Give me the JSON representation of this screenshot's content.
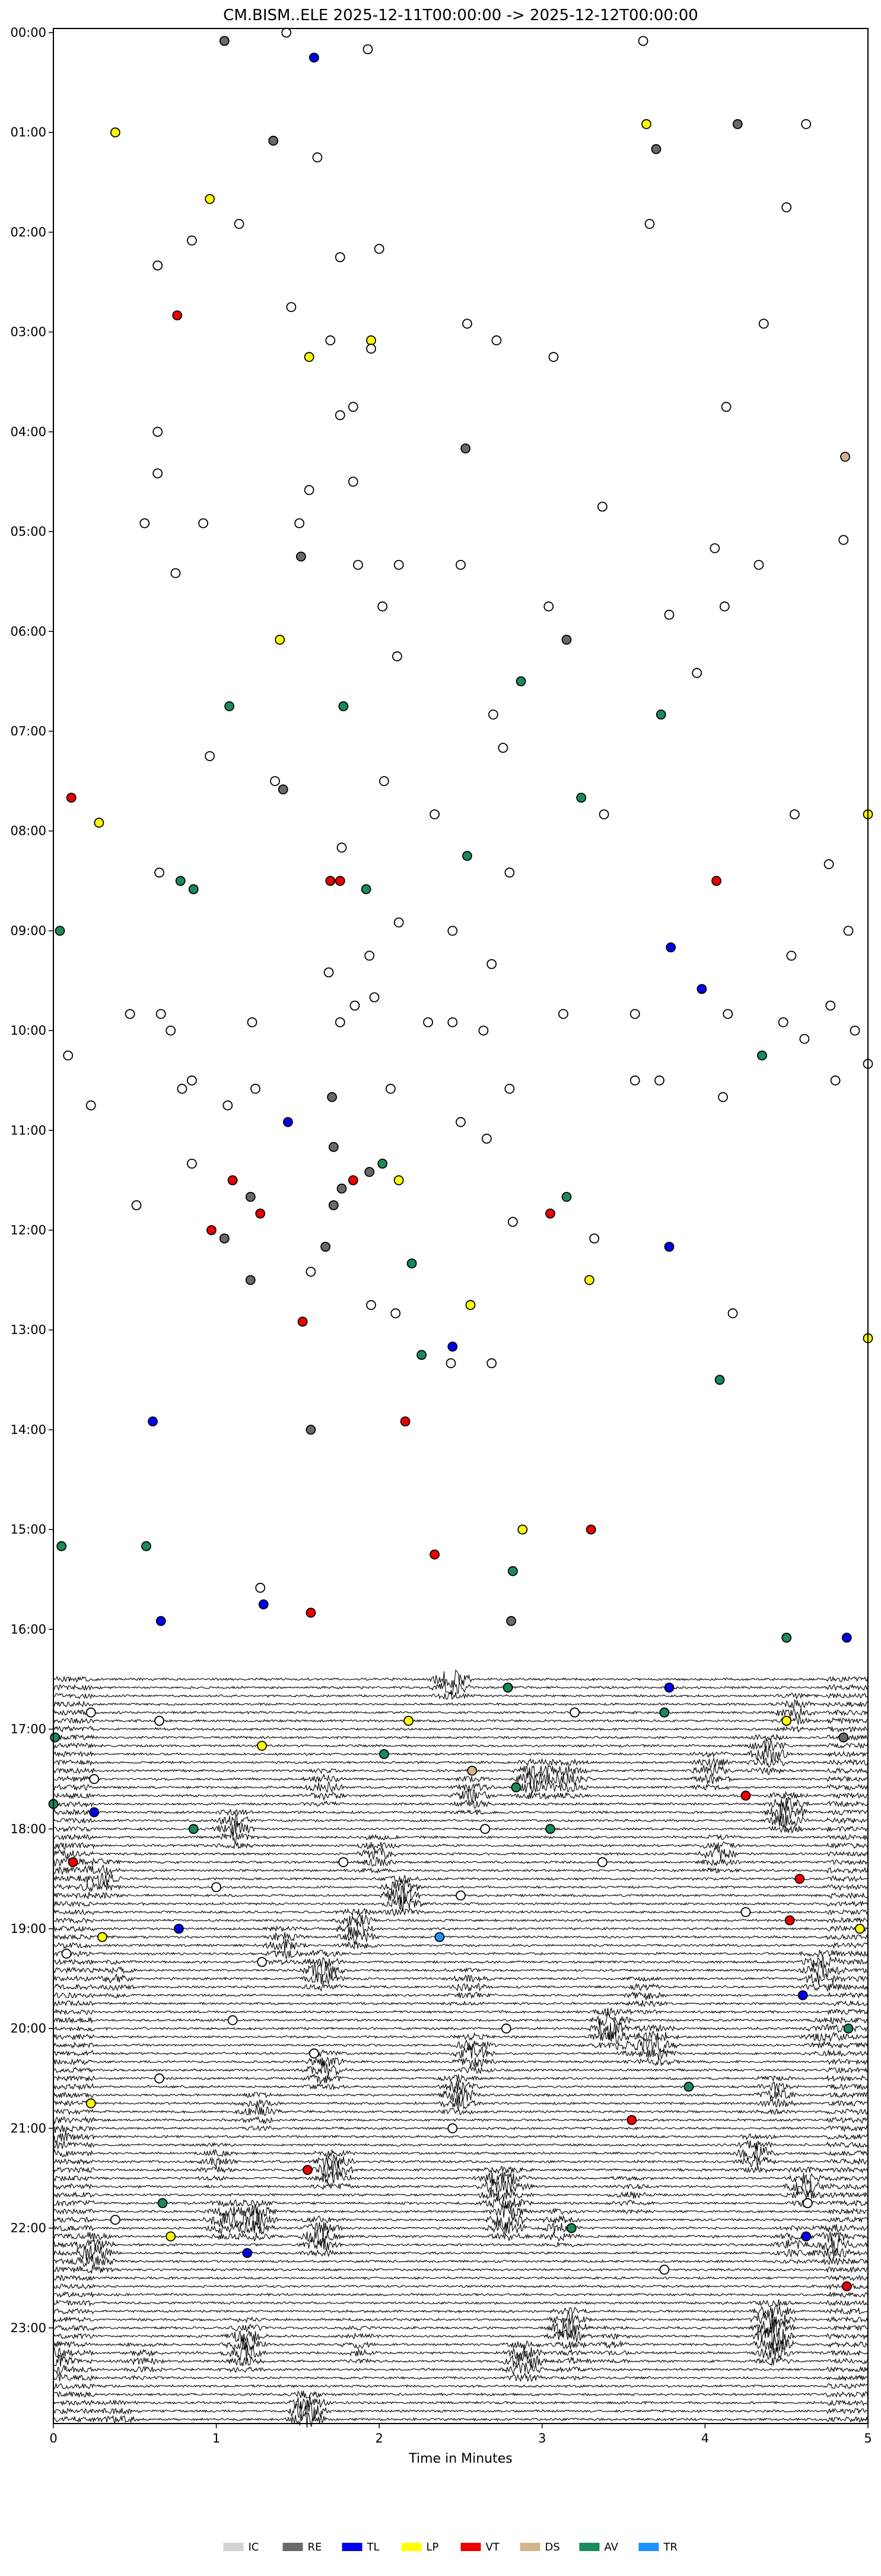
{
  "chart_data": {
    "type": "scatter",
    "title": "CM.BISM..ELE  2025-12-11T00:00:00 -> 2025-12-12T00:00:00",
    "xlabel": "Time in Minutes",
    "ylabel": "",
    "xlim": [
      0,
      5
    ],
    "x_ticks": [
      "0",
      "1",
      "2",
      "3",
      "4",
      "5"
    ],
    "y_ticks": [
      "00:00",
      "01:00",
      "02:00",
      "03:00",
      "04:00",
      "05:00",
      "06:00",
      "07:00",
      "08:00",
      "09:00",
      "10:00",
      "11:00",
      "12:00",
      "13:00",
      "14:00",
      "15:00",
      "16:00",
      "17:00",
      "18:00",
      "19:00",
      "20:00",
      "21:00",
      "22:00",
      "23:00"
    ],
    "rows_per_hour": 12,
    "grid": false,
    "legend_position": "bottom",
    "legend": [
      {
        "label": "IC",
        "color": "#d3d3d3"
      },
      {
        "label": "RE",
        "color": "#696969"
      },
      {
        "label": "TL",
        "color": "#0000ee"
      },
      {
        "label": "LP",
        "color": "#ffff00"
      },
      {
        "label": "VT",
        "color": "#ee0000"
      },
      {
        "label": "DS",
        "color": "#d2b48c"
      },
      {
        "label": "AV",
        "color": "#1a8a5a"
      },
      {
        "label": "TR",
        "color": "#1e90ff"
      }
    ],
    "trace_start_row": 198,
    "events": [
      {
        "x": 1.43,
        "row": 0,
        "c": "IC"
      },
      {
        "x": 1.05,
        "row": 1,
        "c": "RE"
      },
      {
        "x": 3.62,
        "row": 1,
        "c": "IC"
      },
      {
        "x": 1.6,
        "row": 3,
        "c": "TL"
      },
      {
        "x": 1.93,
        "row": 2,
        "c": "IC"
      },
      {
        "x": 0.38,
        "row": 12,
        "c": "LP"
      },
      {
        "x": 3.64,
        "row": 11,
        "c": "LP"
      },
      {
        "x": 4.2,
        "row": 11,
        "c": "RE"
      },
      {
        "x": 4.62,
        "row": 11,
        "c": "IC"
      },
      {
        "x": 1.35,
        "row": 13,
        "c": "RE"
      },
      {
        "x": 3.7,
        "row": 14,
        "c": "RE"
      },
      {
        "x": 1.62,
        "row": 15,
        "c": "IC"
      },
      {
        "x": 0.96,
        "row": 20,
        "c": "LP"
      },
      {
        "x": 4.5,
        "row": 21,
        "c": "IC"
      },
      {
        "x": 1.14,
        "row": 23,
        "c": "IC"
      },
      {
        "x": 3.66,
        "row": 23,
        "c": "IC"
      },
      {
        "x": 0.85,
        "row": 25,
        "c": "IC"
      },
      {
        "x": 2.0,
        "row": 26,
        "c": "IC"
      },
      {
        "x": 1.76,
        "row": 27,
        "c": "IC"
      },
      {
        "x": 0.64,
        "row": 28,
        "c": "IC"
      },
      {
        "x": 0.76,
        "row": 34,
        "c": "VT"
      },
      {
        "x": 1.46,
        "row": 33,
        "c": "IC"
      },
      {
        "x": 4.36,
        "row": 35,
        "c": "IC"
      },
      {
        "x": 2.54,
        "row": 35,
        "c": "IC"
      },
      {
        "x": 1.7,
        "row": 37,
        "c": "IC"
      },
      {
        "x": 1.95,
        "row": 37,
        "c": "LP"
      },
      {
        "x": 1.95,
        "row": 38,
        "c": "IC"
      },
      {
        "x": 2.72,
        "row": 37,
        "c": "IC"
      },
      {
        "x": 1.57,
        "row": 39,
        "c": "LP"
      },
      {
        "x": 3.07,
        "row": 39,
        "c": "IC"
      },
      {
        "x": 1.84,
        "row": 45,
        "c": "IC"
      },
      {
        "x": 4.13,
        "row": 45,
        "c": "IC"
      },
      {
        "x": 1.76,
        "row": 46,
        "c": "IC"
      },
      {
        "x": 0.64,
        "row": 48,
        "c": "IC"
      },
      {
        "x": 2.53,
        "row": 50,
        "c": "RE"
      },
      {
        "x": 4.86,
        "row": 51,
        "c": "DS"
      },
      {
        "x": 0.64,
        "row": 53,
        "c": "IC"
      },
      {
        "x": 1.84,
        "row": 54,
        "c": "IC"
      },
      {
        "x": 1.57,
        "row": 55,
        "c": "IC"
      },
      {
        "x": 3.37,
        "row": 57,
        "c": "IC"
      },
      {
        "x": 0.56,
        "row": 59,
        "c": "IC"
      },
      {
        "x": 0.92,
        "row": 59,
        "c": "IC"
      },
      {
        "x": 1.51,
        "row": 59,
        "c": "IC"
      },
      {
        "x": 4.85,
        "row": 61,
        "c": "IC"
      },
      {
        "x": 4.06,
        "row": 62,
        "c": "IC"
      },
      {
        "x": 1.52,
        "row": 63,
        "c": "RE"
      },
      {
        "x": 1.87,
        "row": 64,
        "c": "IC"
      },
      {
        "x": 2.12,
        "row": 64,
        "c": "IC"
      },
      {
        "x": 2.5,
        "row": 64,
        "c": "IC"
      },
      {
        "x": 4.33,
        "row": 64,
        "c": "IC"
      },
      {
        "x": 0.75,
        "row": 65,
        "c": "IC"
      },
      {
        "x": 2.02,
        "row": 69,
        "c": "IC"
      },
      {
        "x": 3.04,
        "row": 69,
        "c": "IC"
      },
      {
        "x": 4.12,
        "row": 69,
        "c": "IC"
      },
      {
        "x": 3.78,
        "row": 70,
        "c": "IC"
      },
      {
        "x": 1.39,
        "row": 73,
        "c": "LP"
      },
      {
        "x": 3.15,
        "row": 73,
        "c": "RE"
      },
      {
        "x": 2.11,
        "row": 75,
        "c": "IC"
      },
      {
        "x": 3.95,
        "row": 77,
        "c": "IC"
      },
      {
        "x": 2.87,
        "row": 78,
        "c": "AV"
      },
      {
        "x": 1.08,
        "row": 81,
        "c": "AV"
      },
      {
        "x": 1.78,
        "row": 81,
        "c": "AV"
      },
      {
        "x": 2.7,
        "row": 82,
        "c": "IC"
      },
      {
        "x": 3.73,
        "row": 82,
        "c": "AV"
      },
      {
        "x": 0.96,
        "row": 87,
        "c": "IC"
      },
      {
        "x": 2.76,
        "row": 86,
        "c": "IC"
      },
      {
        "x": 1.36,
        "row": 90,
        "c": "IC"
      },
      {
        "x": 1.41,
        "row": 91,
        "c": "RE"
      },
      {
        "x": 2.03,
        "row": 90,
        "c": "IC"
      },
      {
        "x": 0.11,
        "row": 92,
        "c": "VT"
      },
      {
        "x": 3.24,
        "row": 92,
        "c": "AV"
      },
      {
        "x": 2.34,
        "row": 94,
        "c": "IC"
      },
      {
        "x": 3.38,
        "row": 94,
        "c": "IC"
      },
      {
        "x": 4.55,
        "row": 94,
        "c": "IC"
      },
      {
        "x": 5.0,
        "row": 94,
        "c": "LP"
      },
      {
        "x": 0.28,
        "row": 95,
        "c": "LP"
      },
      {
        "x": 1.77,
        "row": 98,
        "c": "IC"
      },
      {
        "x": 2.54,
        "row": 99,
        "c": "AV"
      },
      {
        "x": 4.76,
        "row": 100,
        "c": "IC"
      },
      {
        "x": 0.65,
        "row": 101,
        "c": "IC"
      },
      {
        "x": 2.8,
        "row": 101,
        "c": "IC"
      },
      {
        "x": 0.78,
        "row": 102,
        "c": "AV"
      },
      {
        "x": 1.7,
        "row": 102,
        "c": "VT"
      },
      {
        "x": 1.76,
        "row": 102,
        "c": "VT"
      },
      {
        "x": 4.07,
        "row": 102,
        "c": "VT"
      },
      {
        "x": 0.86,
        "row": 103,
        "c": "AV"
      },
      {
        "x": 1.92,
        "row": 103,
        "c": "AV"
      },
      {
        "x": 0.04,
        "row": 108,
        "c": "AV"
      },
      {
        "x": 2.12,
        "row": 107,
        "c": "IC"
      },
      {
        "x": 2.45,
        "row": 108,
        "c": "IC"
      },
      {
        "x": 4.88,
        "row": 108,
        "c": "IC"
      },
      {
        "x": 3.79,
        "row": 110,
        "c": "TL"
      },
      {
        "x": 4.53,
        "row": 111,
        "c": "IC"
      },
      {
        "x": 1.94,
        "row": 111,
        "c": "IC"
      },
      {
        "x": 2.69,
        "row": 112,
        "c": "IC"
      },
      {
        "x": 1.69,
        "row": 113,
        "c": "IC"
      },
      {
        "x": 3.98,
        "row": 115,
        "c": "TL"
      },
      {
        "x": 1.97,
        "row": 116,
        "c": "IC"
      },
      {
        "x": 1.85,
        "row": 117,
        "c": "IC"
      },
      {
        "x": 4.77,
        "row": 117,
        "c": "IC"
      },
      {
        "x": 0.47,
        "row": 118,
        "c": "IC"
      },
      {
        "x": 0.66,
        "row": 118,
        "c": "IC"
      },
      {
        "x": 3.13,
        "row": 118,
        "c": "IC"
      },
      {
        "x": 3.57,
        "row": 118,
        "c": "IC"
      },
      {
        "x": 4.14,
        "row": 118,
        "c": "IC"
      },
      {
        "x": 1.22,
        "row": 119,
        "c": "IC"
      },
      {
        "x": 1.76,
        "row": 119,
        "c": "IC"
      },
      {
        "x": 2.3,
        "row": 119,
        "c": "IC"
      },
      {
        "x": 2.45,
        "row": 119,
        "c": "IC"
      },
      {
        "x": 4.48,
        "row": 119,
        "c": "IC"
      },
      {
        "x": 0.72,
        "row": 120,
        "c": "IC"
      },
      {
        "x": 2.64,
        "row": 120,
        "c": "IC"
      },
      {
        "x": 4.92,
        "row": 120,
        "c": "IC"
      },
      {
        "x": 4.61,
        "row": 121,
        "c": "IC"
      },
      {
        "x": 0.09,
        "row": 123,
        "c": "IC"
      },
      {
        "x": 4.35,
        "row": 123,
        "c": "AV"
      },
      {
        "x": 5.0,
        "row": 124,
        "c": "IC"
      },
      {
        "x": 0.85,
        "row": 126,
        "c": "IC"
      },
      {
        "x": 3.57,
        "row": 126,
        "c": "IC"
      },
      {
        "x": 3.72,
        "row": 126,
        "c": "IC"
      },
      {
        "x": 4.8,
        "row": 126,
        "c": "IC"
      },
      {
        "x": 0.79,
        "row": 127,
        "c": "IC"
      },
      {
        "x": 1.24,
        "row": 127,
        "c": "IC"
      },
      {
        "x": 2.07,
        "row": 127,
        "c": "IC"
      },
      {
        "x": 2.8,
        "row": 127,
        "c": "IC"
      },
      {
        "x": 1.71,
        "row": 128,
        "c": "RE"
      },
      {
        "x": 4.11,
        "row": 128,
        "c": "IC"
      },
      {
        "x": 0.23,
        "row": 129,
        "c": "IC"
      },
      {
        "x": 1.07,
        "row": 129,
        "c": "IC"
      },
      {
        "x": 1.44,
        "row": 131,
        "c": "TL"
      },
      {
        "x": 2.5,
        "row": 131,
        "c": "IC"
      },
      {
        "x": 2.66,
        "row": 133,
        "c": "IC"
      },
      {
        "x": 1.72,
        "row": 134,
        "c": "RE"
      },
      {
        "x": 0.85,
        "row": 136,
        "c": "IC"
      },
      {
        "x": 1.94,
        "row": 137,
        "c": "RE"
      },
      {
        "x": 2.02,
        "row": 136,
        "c": "AV"
      },
      {
        "x": 1.1,
        "row": 138,
        "c": "VT"
      },
      {
        "x": 1.84,
        "row": 138,
        "c": "VT"
      },
      {
        "x": 2.12,
        "row": 138,
        "c": "LP"
      },
      {
        "x": 1.77,
        "row": 139,
        "c": "RE"
      },
      {
        "x": 1.21,
        "row": 140,
        "c": "RE"
      },
      {
        "x": 3.15,
        "row": 140,
        "c": "AV"
      },
      {
        "x": 0.51,
        "row": 141,
        "c": "IC"
      },
      {
        "x": 1.72,
        "row": 141,
        "c": "RE"
      },
      {
        "x": 1.27,
        "row": 142,
        "c": "VT"
      },
      {
        "x": 3.05,
        "row": 142,
        "c": "VT"
      },
      {
        "x": 2.82,
        "row": 143,
        "c": "IC"
      },
      {
        "x": 0.97,
        "row": 144,
        "c": "VT"
      },
      {
        "x": 1.05,
        "row": 145,
        "c": "RE"
      },
      {
        "x": 3.32,
        "row": 145,
        "c": "IC"
      },
      {
        "x": 3.78,
        "row": 146,
        "c": "TL"
      },
      {
        "x": 1.67,
        "row": 146,
        "c": "RE"
      },
      {
        "x": 2.2,
        "row": 148,
        "c": "AV"
      },
      {
        "x": 1.21,
        "row": 150,
        "c": "RE"
      },
      {
        "x": 3.29,
        "row": 150,
        "c": "LP"
      },
      {
        "x": 1.58,
        "row": 149,
        "c": "IC"
      },
      {
        "x": 1.95,
        "row": 153,
        "c": "IC"
      },
      {
        "x": 2.1,
        "row": 154,
        "c": "IC"
      },
      {
        "x": 2.56,
        "row": 153,
        "c": "LP"
      },
      {
        "x": 4.17,
        "row": 154,
        "c": "IC"
      },
      {
        "x": 1.53,
        "row": 155,
        "c": "VT"
      },
      {
        "x": 5.0,
        "row": 157,
        "c": "LP"
      },
      {
        "x": 2.45,
        "row": 158,
        "c": "TL"
      },
      {
        "x": 2.26,
        "row": 159,
        "c": "AV"
      },
      {
        "x": 2.44,
        "row": 160,
        "c": "IC"
      },
      {
        "x": 2.69,
        "row": 160,
        "c": "IC"
      },
      {
        "x": 4.09,
        "row": 162,
        "c": "AV"
      },
      {
        "x": 0.61,
        "row": 167,
        "c": "TL"
      },
      {
        "x": 2.16,
        "row": 167,
        "c": "VT"
      },
      {
        "x": 1.58,
        "row": 168,
        "c": "RE"
      },
      {
        "x": 2.88,
        "row": 180,
        "c": "LP"
      },
      {
        "x": 3.3,
        "row": 180,
        "c": "VT"
      },
      {
        "x": 0.05,
        "row": 182,
        "c": "AV"
      },
      {
        "x": 0.57,
        "row": 182,
        "c": "AV"
      },
      {
        "x": 2.34,
        "row": 183,
        "c": "VT"
      },
      {
        "x": 2.82,
        "row": 185,
        "c": "AV"
      },
      {
        "x": 1.27,
        "row": 187,
        "c": "IC"
      },
      {
        "x": 1.29,
        "row": 189,
        "c": "TL"
      },
      {
        "x": 1.58,
        "row": 190,
        "c": "VT"
      },
      {
        "x": 2.81,
        "row": 191,
        "c": "RE"
      },
      {
        "x": 0.66,
        "row": 191,
        "c": "TL"
      },
      {
        "x": 4.5,
        "row": 193,
        "c": "AV"
      },
      {
        "x": 4.87,
        "row": 193,
        "c": "TL"
      },
      {
        "x": 2.79,
        "row": 199,
        "c": "AV"
      },
      {
        "x": 3.78,
        "row": 199,
        "c": "TL"
      },
      {
        "x": 0.23,
        "row": 202,
        "c": "IC"
      },
      {
        "x": 3.2,
        "row": 202,
        "c": "IC"
      },
      {
        "x": 0.65,
        "row": 203,
        "c": "IC"
      },
      {
        "x": 2.18,
        "row": 203,
        "c": "LP"
      },
      {
        "x": 3.75,
        "row": 202,
        "c": "AV"
      },
      {
        "x": 4.5,
        "row": 203,
        "c": "LP"
      },
      {
        "x": 4.85,
        "row": 205,
        "c": "RE"
      },
      {
        "x": 0.01,
        "row": 205,
        "c": "AV"
      },
      {
        "x": 1.28,
        "row": 206,
        "c": "LP"
      },
      {
        "x": 2.03,
        "row": 207,
        "c": "AV"
      },
      {
        "x": 2.57,
        "row": 209,
        "c": "DS"
      },
      {
        "x": 0.25,
        "row": 210,
        "c": "IC"
      },
      {
        "x": 2.84,
        "row": 211,
        "c": "AV"
      },
      {
        "x": 4.25,
        "row": 212,
        "c": "VT"
      },
      {
        "x": 0.0,
        "row": 213,
        "c": "AV"
      },
      {
        "x": 0.25,
        "row": 214,
        "c": "TL"
      },
      {
        "x": 0.86,
        "row": 216,
        "c": "AV"
      },
      {
        "x": 2.65,
        "row": 216,
        "c": "IC"
      },
      {
        "x": 3.05,
        "row": 216,
        "c": "AV"
      },
      {
        "x": 0.12,
        "row": 220,
        "c": "VT"
      },
      {
        "x": 1.78,
        "row": 220,
        "c": "IC"
      },
      {
        "x": 3.37,
        "row": 220,
        "c": "IC"
      },
      {
        "x": 4.58,
        "row": 222,
        "c": "VT"
      },
      {
        "x": 1.0,
        "row": 223,
        "c": "IC"
      },
      {
        "x": 2.5,
        "row": 224,
        "c": "IC"
      },
      {
        "x": 4.25,
        "row": 226,
        "c": "IC"
      },
      {
        "x": 4.52,
        "row": 227,
        "c": "VT"
      },
      {
        "x": 4.95,
        "row": 228,
        "c": "LP"
      },
      {
        "x": 0.3,
        "row": 229,
        "c": "LP"
      },
      {
        "x": 0.77,
        "row": 228,
        "c": "TL"
      },
      {
        "x": 2.37,
        "row": 229,
        "c": "TR"
      },
      {
        "x": 0.08,
        "row": 231,
        "c": "IC"
      },
      {
        "x": 1.28,
        "row": 232,
        "c": "IC"
      },
      {
        "x": 4.6,
        "row": 236,
        "c": "TL"
      },
      {
        "x": 1.1,
        "row": 239,
        "c": "IC"
      },
      {
        "x": 2.78,
        "row": 240,
        "c": "IC"
      },
      {
        "x": 4.88,
        "row": 240,
        "c": "AV"
      },
      {
        "x": 1.6,
        "row": 243,
        "c": "IC"
      },
      {
        "x": 0.65,
        "row": 246,
        "c": "IC"
      },
      {
        "x": 3.9,
        "row": 247,
        "c": "AV"
      },
      {
        "x": 0.23,
        "row": 249,
        "c": "LP"
      },
      {
        "x": 3.55,
        "row": 251,
        "c": "VT"
      },
      {
        "x": 2.45,
        "row": 252,
        "c": "IC"
      },
      {
        "x": 1.56,
        "row": 257,
        "c": "VT"
      },
      {
        "x": 0.67,
        "row": 261,
        "c": "AV"
      },
      {
        "x": 4.63,
        "row": 261,
        "c": "IC"
      },
      {
        "x": 0.38,
        "row": 263,
        "c": "IC"
      },
      {
        "x": 0.72,
        "row": 265,
        "c": "LP"
      },
      {
        "x": 4.62,
        "row": 265,
        "c": "TL"
      },
      {
        "x": 3.18,
        "row": 264,
        "c": "AV"
      },
      {
        "x": 1.19,
        "row": 267,
        "c": "TL"
      },
      {
        "x": 3.75,
        "row": 269,
        "c": "IC"
      },
      {
        "x": 4.87,
        "row": 271,
        "c": "VT"
      }
    ]
  }
}
